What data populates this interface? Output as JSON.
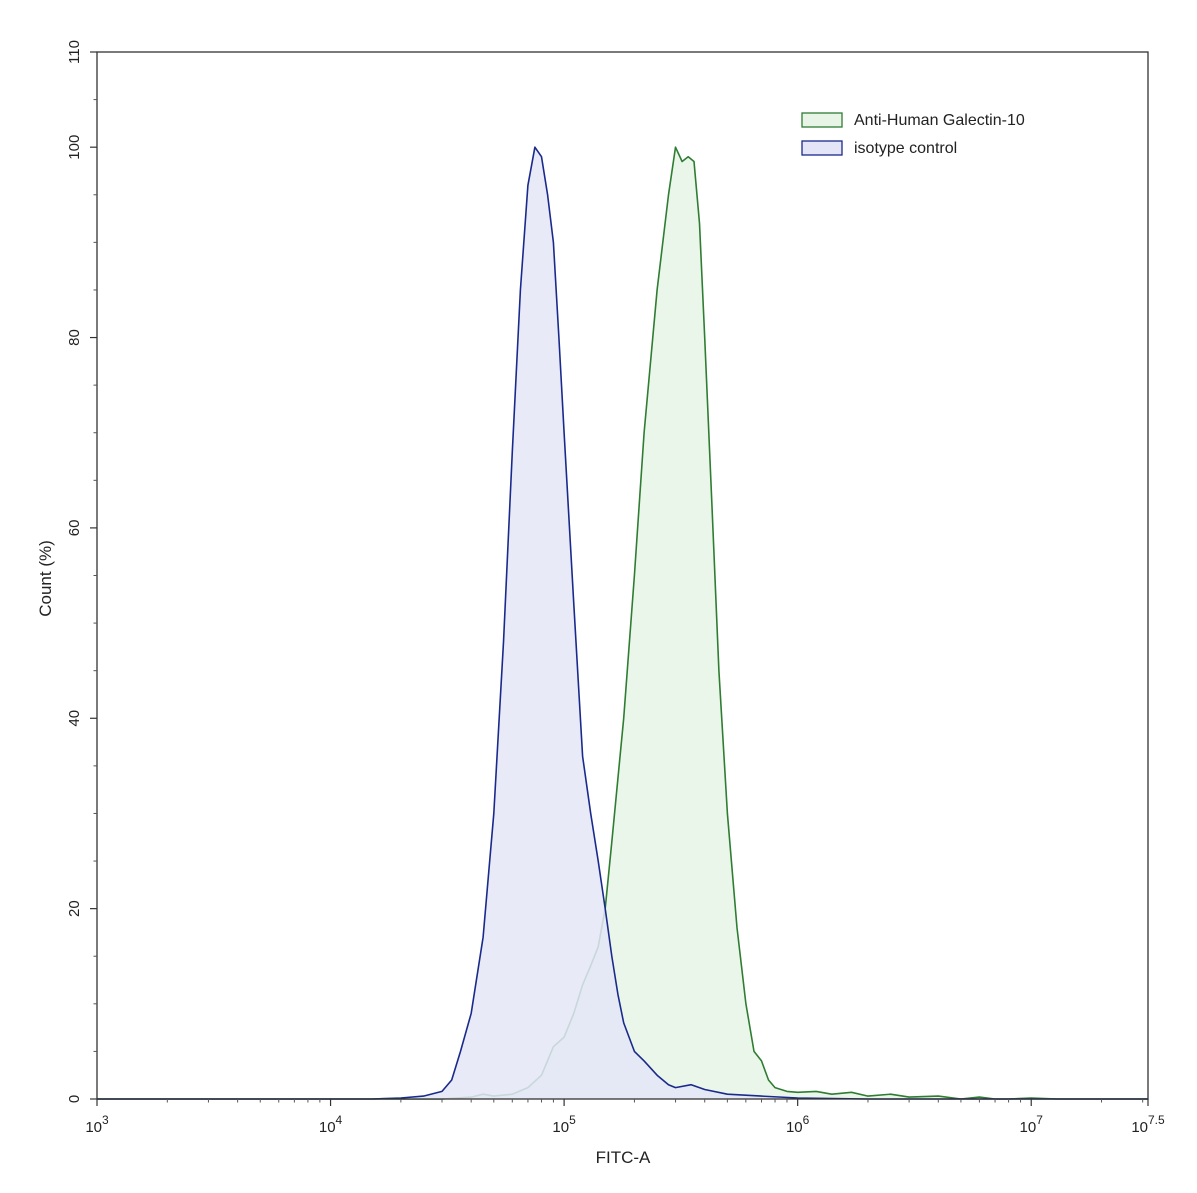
{
  "chart_data": {
    "type": "area",
    "title": "",
    "xlabel": "FITC-A",
    "ylabel": "Count (%)",
    "xscale": "log",
    "xlim": [
      1000,
      31622776.6
    ],
    "ylim": [
      0,
      110
    ],
    "x_ticks": [
      {
        "base": "10",
        "exp": "3"
      },
      {
        "base": "10",
        "exp": "4"
      },
      {
        "base": "10",
        "exp": "5"
      },
      {
        "base": "10",
        "exp": "6"
      },
      {
        "base": "10",
        "exp": "7"
      },
      {
        "base": "10",
        "exp": "7.5"
      }
    ],
    "y_ticks": [
      "0",
      "20",
      "40",
      "60",
      "80",
      "100",
      "110"
    ],
    "grid": false,
    "legend_position": "top-right",
    "series": [
      {
        "name": "Anti-Human Galectin-10",
        "stroke": "#2e7d32",
        "fill": "#e8f4e6",
        "x": [
          1000,
          30000,
          40000,
          45000,
          50000,
          60000,
          70000,
          80000,
          90000,
          100000,
          110000,
          120000,
          130000,
          140000,
          150000,
          160000,
          180000,
          200000,
          220000,
          250000,
          280000,
          300000,
          320000,
          340000,
          360000,
          380000,
          400000,
          430000,
          460000,
          500000,
          550000,
          600000,
          650000,
          700000,
          750000,
          800000,
          900000,
          1000000,
          1200000,
          1400000,
          1700000,
          2000000,
          2500000,
          3000000,
          4000000,
          5000000,
          6000000,
          7000000,
          8000000,
          10000000,
          13000000,
          20000000,
          31622776.6
        ],
        "y": [
          0,
          0,
          0.2,
          0.5,
          0.3,
          0.5,
          1.2,
          2.5,
          5.5,
          6.5,
          9,
          12,
          14,
          16,
          20,
          27,
          40,
          55,
          70,
          85,
          95,
          100,
          98.5,
          99,
          98.5,
          92,
          80,
          62,
          45,
          30,
          18,
          10,
          5,
          4,
          2,
          1.2,
          0.8,
          0.7,
          0.8,
          0.5,
          0.7,
          0.3,
          0.5,
          0.2,
          0.3,
          0,
          0.2,
          0,
          0,
          0.1,
          0,
          0,
          0
        ]
      },
      {
        "name": "isotype control",
        "stroke": "#1a2a8c",
        "fill": "#e4e6f7",
        "x": [
          1000,
          3000,
          4000,
          15000,
          20000,
          25000,
          30000,
          33000,
          36000,
          40000,
          45000,
          50000,
          55000,
          60000,
          65000,
          70000,
          75000,
          80000,
          85000,
          90000,
          95000,
          100000,
          110000,
          120000,
          130000,
          140000,
          150000,
          160000,
          170000,
          180000,
          200000,
          220000,
          250000,
          280000,
          300000,
          350000,
          400000,
          500000,
          700000,
          1000000,
          2000000,
          31622776.6
        ],
        "y": [
          0,
          0,
          0,
          0,
          0.1,
          0.3,
          0.8,
          2,
          5,
          9,
          17,
          30,
          48,
          68,
          85,
          96,
          100,
          99,
          95,
          90,
          80,
          70,
          52,
          36,
          30,
          25,
          20,
          15,
          11,
          8,
          5,
          4,
          2.5,
          1.5,
          1.2,
          1.5,
          1,
          0.5,
          0.3,
          0.1,
          0,
          0
        ]
      }
    ]
  }
}
